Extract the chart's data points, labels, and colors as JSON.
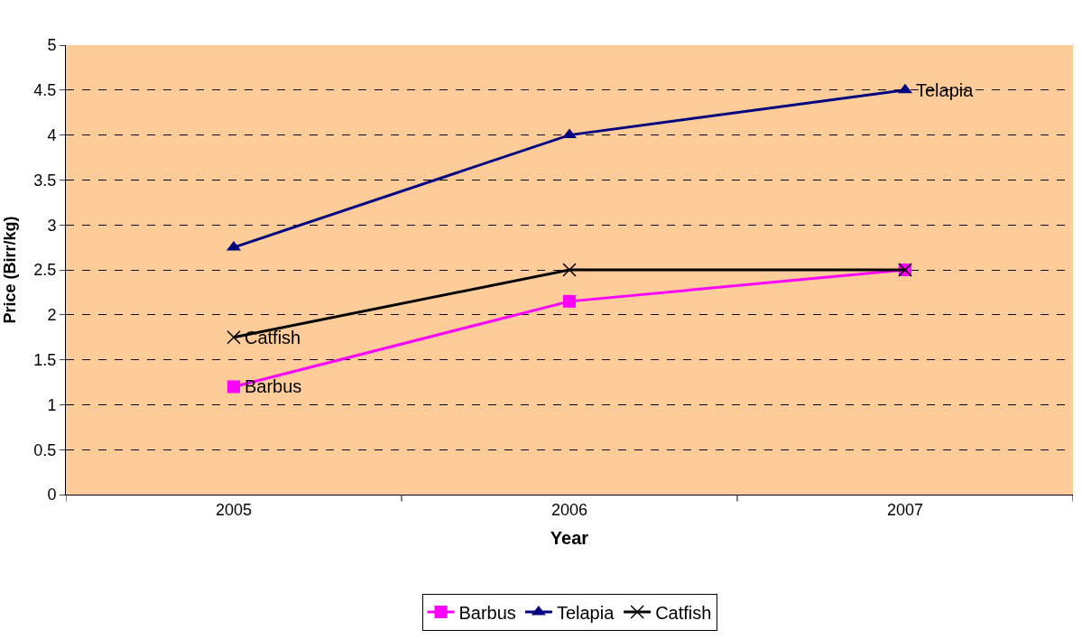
{
  "chart_data": {
    "type": "line",
    "xlabel": "Year",
    "ylabel": "Price (Birr/kg)",
    "categories": [
      "2005",
      "2006",
      "2007"
    ],
    "series": [
      {
        "name": "Barbus",
        "color": "#ff00ff",
        "marker": "square",
        "values": [
          1.2,
          2.15,
          2.5
        ]
      },
      {
        "name": "Telapia",
        "color": "#000080",
        "marker": "triangle",
        "values": [
          2.75,
          4,
          4.5
        ]
      },
      {
        "name": "Catfish",
        "color": "#000000",
        "marker": "cross",
        "values": [
          1.75,
          2.5,
          2.5
        ]
      }
    ],
    "annotations": [
      {
        "text": "Barbus",
        "x": "2005",
        "y": 1.2
      },
      {
        "text": "Catfish",
        "x": "2005",
        "y": 1.75
      },
      {
        "text": "Telapia",
        "x": "2007",
        "y": 4.5
      }
    ],
    "ylim": [
      0,
      5
    ],
    "yticks": [
      0,
      0.5,
      1,
      1.5,
      2,
      2.5,
      3,
      3.5,
      4,
      4.5,
      5
    ],
    "grid": "y",
    "legend": "bottom",
    "line_style": "solid"
  }
}
